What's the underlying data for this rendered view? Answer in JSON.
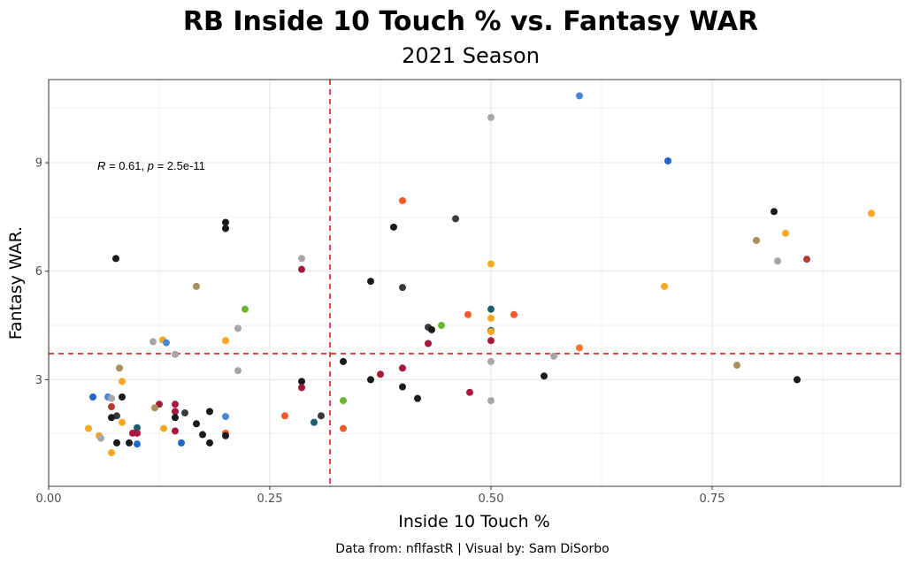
{
  "chart_data": {
    "type": "scatter",
    "title": "RB Inside 10 Touch % vs. Fantasy WAR",
    "subtitle": "2021 Season",
    "xlabel": "Inside 10 Touch %",
    "ylabel": "Fantasy WAR.",
    "caption": "Data from: nflfastR | Visual by: Sam DiSorbo",
    "annotation": {
      "r_label": "R",
      "r_text": " = 0.61, ",
      "p_label": "p",
      "p_text": " = 2.5e-11"
    },
    "xlim": [
      0,
      0.963
    ],
    "ylim": [
      0.05,
      11.3
    ],
    "x_ticks": [
      0.0,
      0.25,
      0.5,
      0.75
    ],
    "x_tick_labels": [
      "0.00",
      "0.25",
      "0.50",
      "0.75"
    ],
    "y_ticks": [
      3,
      6,
      9
    ],
    "y_tick_labels": [
      "3",
      "6",
      "9"
    ],
    "x_minor": [
      0.125,
      0.375,
      0.625,
      0.875
    ],
    "y_minor": [
      1.5,
      4.5,
      7.5,
      10.5
    ],
    "vline_x": 0.318,
    "hline_y": 3.72,
    "ref_line_color": "#e41a1c",
    "grid_color": "#e6e6e6",
    "points": [
      {
        "x": 0.6,
        "y": 10.85,
        "c": "#4a86d8"
      },
      {
        "x": 0.5,
        "y": 10.25,
        "c": "#a6a6a6"
      },
      {
        "x": 0.7,
        "y": 9.05,
        "c": "#2266c8"
      },
      {
        "x": 0.4,
        "y": 7.95,
        "c": "#f05a28"
      },
      {
        "x": 0.82,
        "y": 7.65,
        "c": "#1a1a1a"
      },
      {
        "x": 0.93,
        "y": 7.6,
        "c": "#f7a823"
      },
      {
        "x": 0.46,
        "y": 7.45,
        "c": "#3a3a3a"
      },
      {
        "x": 0.2,
        "y": 7.35,
        "c": "#1a1a1a"
      },
      {
        "x": 0.39,
        "y": 7.22,
        "c": "#1a1a1a"
      },
      {
        "x": 0.2,
        "y": 7.18,
        "c": "#1a1a1a"
      },
      {
        "x": 0.833,
        "y": 7.05,
        "c": "#f7a823"
      },
      {
        "x": 0.8,
        "y": 6.85,
        "c": "#a8905a"
      },
      {
        "x": 0.076,
        "y": 6.35,
        "c": "#1a1a1a"
      },
      {
        "x": 0.286,
        "y": 6.35,
        "c": "#a6a6a6"
      },
      {
        "x": 0.857,
        "y": 6.33,
        "c": "#b23a2e"
      },
      {
        "x": 0.824,
        "y": 6.28,
        "c": "#a6a6a6"
      },
      {
        "x": 0.5,
        "y": 6.2,
        "c": "#f7a823"
      },
      {
        "x": 0.286,
        "y": 6.05,
        "c": "#a6193c"
      },
      {
        "x": 0.364,
        "y": 5.72,
        "c": "#1a1a1a"
      },
      {
        "x": 0.167,
        "y": 5.58,
        "c": "#a8905a"
      },
      {
        "x": 0.696,
        "y": 5.58,
        "c": "#f7a823"
      },
      {
        "x": 0.4,
        "y": 5.55,
        "c": "#3a3a3a"
      },
      {
        "x": 0.5,
        "y": 4.95,
        "c": "#1a5e6e"
      },
      {
        "x": 0.222,
        "y": 4.95,
        "c": "#6ab72f"
      },
      {
        "x": 0.474,
        "y": 4.8,
        "c": "#f05a28"
      },
      {
        "x": 0.526,
        "y": 4.8,
        "c": "#f05a28"
      },
      {
        "x": 0.5,
        "y": 4.7,
        "c": "#f7a823"
      },
      {
        "x": 0.444,
        "y": 4.5,
        "c": "#6ab72f"
      },
      {
        "x": 0.429,
        "y": 4.45,
        "c": "#3a3a3a"
      },
      {
        "x": 0.214,
        "y": 4.42,
        "c": "#a6a6a6"
      },
      {
        "x": 0.433,
        "y": 4.38,
        "c": "#1a1a1a"
      },
      {
        "x": 0.5,
        "y": 4.36,
        "c": "#1a5e6e"
      },
      {
        "x": 0.5,
        "y": 4.33,
        "c": "#f7a823"
      },
      {
        "x": 0.5,
        "y": 4.08,
        "c": "#a6193c"
      },
      {
        "x": 0.2,
        "y": 4.08,
        "c": "#f7a823"
      },
      {
        "x": 0.129,
        "y": 4.1,
        "c": "#f7a823"
      },
      {
        "x": 0.118,
        "y": 4.05,
        "c": "#a6a6a6"
      },
      {
        "x": 0.133,
        "y": 4.02,
        "c": "#4a86d8"
      },
      {
        "x": 0.429,
        "y": 4.0,
        "c": "#a6193c"
      },
      {
        "x": 0.6,
        "y": 3.88,
        "c": "#f07828"
      },
      {
        "x": 0.143,
        "y": 3.7,
        "c": "#a6a6a6"
      },
      {
        "x": 0.571,
        "y": 3.65,
        "c": "#a6a6a6"
      },
      {
        "x": 0.333,
        "y": 3.5,
        "c": "#1a1a1a"
      },
      {
        "x": 0.5,
        "y": 3.5,
        "c": "#a6a6a6"
      },
      {
        "x": 0.778,
        "y": 3.4,
        "c": "#a8905a"
      },
      {
        "x": 0.4,
        "y": 3.32,
        "c": "#a6193c"
      },
      {
        "x": 0.08,
        "y": 3.32,
        "c": "#a8905a"
      },
      {
        "x": 0.214,
        "y": 3.25,
        "c": "#a6a6a6"
      },
      {
        "x": 0.375,
        "y": 3.15,
        "c": "#a6193c"
      },
      {
        "x": 0.56,
        "y": 3.1,
        "c": "#1a1a1a"
      },
      {
        "x": 0.364,
        "y": 3.0,
        "c": "#1a1a1a"
      },
      {
        "x": 0.846,
        "y": 3.0,
        "c": "#1a1a1a"
      },
      {
        "x": 0.286,
        "y": 2.95,
        "c": "#1a1a1a"
      },
      {
        "x": 0.083,
        "y": 2.95,
        "c": "#f7a823"
      },
      {
        "x": 0.4,
        "y": 2.8,
        "c": "#1a1a1a"
      },
      {
        "x": 0.286,
        "y": 2.78,
        "c": "#a6193c"
      },
      {
        "x": 0.476,
        "y": 2.65,
        "c": "#a6193c"
      },
      {
        "x": 0.05,
        "y": 2.52,
        "c": "#2266c8"
      },
      {
        "x": 0.067,
        "y": 2.52,
        "c": "#4a86d8"
      },
      {
        "x": 0.071,
        "y": 2.48,
        "c": "#a6a6a6"
      },
      {
        "x": 0.083,
        "y": 2.52,
        "c": "#1a1a1a"
      },
      {
        "x": 0.417,
        "y": 2.48,
        "c": "#1a1a1a"
      },
      {
        "x": 0.5,
        "y": 2.42,
        "c": "#a6a6a6"
      },
      {
        "x": 0.333,
        "y": 2.42,
        "c": "#6ab72f"
      },
      {
        "x": 0.125,
        "y": 2.32,
        "c": "#a6193c"
      },
      {
        "x": 0.143,
        "y": 2.32,
        "c": "#a6193c"
      },
      {
        "x": 0.071,
        "y": 2.25,
        "c": "#b23a2e"
      },
      {
        "x": 0.12,
        "y": 2.22,
        "c": "#a8905a"
      },
      {
        "x": 0.143,
        "y": 2.12,
        "c": "#a6193c"
      },
      {
        "x": 0.154,
        "y": 2.08,
        "c": "#3a3a3a"
      },
      {
        "x": 0.182,
        "y": 2.12,
        "c": "#1a1a1a"
      },
      {
        "x": 0.077,
        "y": 2.0,
        "c": "#3a3a3a"
      },
      {
        "x": 0.071,
        "y": 1.95,
        "c": "#1a1a1a"
      },
      {
        "x": 0.143,
        "y": 1.95,
        "c": "#1a1a1a"
      },
      {
        "x": 0.2,
        "y": 1.98,
        "c": "#4a86d8"
      },
      {
        "x": 0.267,
        "y": 2.0,
        "c": "#f05a28"
      },
      {
        "x": 0.308,
        "y": 2.0,
        "c": "#3a3a3a"
      },
      {
        "x": 0.083,
        "y": 1.82,
        "c": "#f7a823"
      },
      {
        "x": 0.3,
        "y": 1.82,
        "c": "#1a5e6e"
      },
      {
        "x": 0.167,
        "y": 1.78,
        "c": "#1a1a1a"
      },
      {
        "x": 0.1,
        "y": 1.67,
        "c": "#1a5e6e"
      },
      {
        "x": 0.045,
        "y": 1.65,
        "c": "#f7a823"
      },
      {
        "x": 0.13,
        "y": 1.65,
        "c": "#f7a823"
      },
      {
        "x": 0.333,
        "y": 1.65,
        "c": "#f05a28"
      },
      {
        "x": 0.143,
        "y": 1.58,
        "c": "#a6193c"
      },
      {
        "x": 0.095,
        "y": 1.52,
        "c": "#a6193c"
      },
      {
        "x": 0.1,
        "y": 1.52,
        "c": "#a6193c"
      },
      {
        "x": 0.2,
        "y": 1.52,
        "c": "#f05a28"
      },
      {
        "x": 0.174,
        "y": 1.48,
        "c": "#1a1a1a"
      },
      {
        "x": 0.2,
        "y": 1.45,
        "c": "#1a1a1a"
      },
      {
        "x": 0.057,
        "y": 1.45,
        "c": "#f7a823"
      },
      {
        "x": 0.059,
        "y": 1.38,
        "c": "#a6a6a6"
      },
      {
        "x": 0.077,
        "y": 1.25,
        "c": "#1a1a1a"
      },
      {
        "x": 0.091,
        "y": 1.25,
        "c": "#1a1a1a"
      },
      {
        "x": 0.1,
        "y": 1.22,
        "c": "#2266c8"
      },
      {
        "x": 0.15,
        "y": 1.25,
        "c": "#2266c8"
      },
      {
        "x": 0.182,
        "y": 1.25,
        "c": "#1a1a1a"
      },
      {
        "x": 0.071,
        "y": 0.98,
        "c": "#f7a823"
      }
    ]
  }
}
